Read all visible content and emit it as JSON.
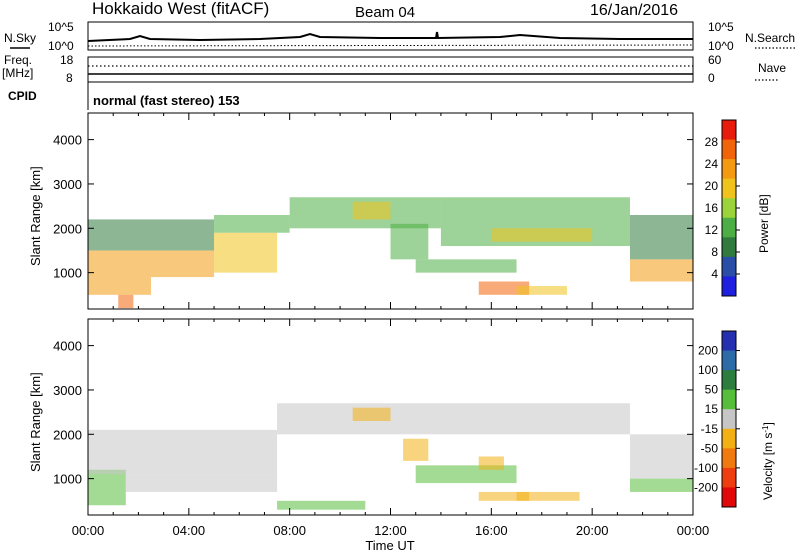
{
  "header": {
    "station": "Hokkaido West (fitACF)",
    "beam": "Beam 04",
    "date": "16/Jan/2016"
  },
  "top_panels": {
    "nsky_label": "N.Sky",
    "nsky_ticks": [
      "10^5",
      "10^0"
    ],
    "nsearch_label": "N.Search",
    "nsearch_ticks": [
      "10^5",
      "10^0"
    ],
    "freq_label": "Freq.",
    "freq_unit": "[MHz]",
    "freq_ticks": [
      "18",
      "8"
    ],
    "nave_label": "Nave",
    "nave_ticks": [
      "60",
      "0"
    ],
    "cpid_label": "CPID",
    "cpid_text": "normal (fast stereo) 153"
  },
  "colors": {
    "power": [
      "#1f1fe0",
      "#2a4ea8",
      "#2f7a3c",
      "#4cae44",
      "#9ad43a",
      "#f0c21c",
      "#f39a10",
      "#f2640a",
      "#e81c0c"
    ],
    "velocity": [
      "#2430b0",
      "#2c6aa8",
      "#2d7d3e",
      "#57be3c",
      "#c6c6c6",
      "#f2b014",
      "#f07a10",
      "#ee3e10",
      "#e00808"
    ],
    "ground_scatter": "#c6c6c6"
  },
  "chart_data": [
    {
      "type": "heatmap",
      "title": "",
      "xlabel": "",
      "ylabel": "Slant Range [km]",
      "xlim": [
        "00:00",
        "24:00"
      ],
      "ylim": [
        180,
        4600
      ],
      "x_ticks": [
        "00:00",
        "04:00",
        "08:00",
        "12:00",
        "16:00",
        "20:00",
        "00:00"
      ],
      "y_ticks": [
        "1000",
        "2000",
        "3000",
        "4000"
      ],
      "colorbar": {
        "label": "Power [dB]",
        "range": [
          0,
          32
        ],
        "ticks": [
          "4",
          "8",
          "12",
          "16",
          "20",
          "24",
          "28"
        ]
      },
      "series": [
        {
          "values": [
            {
              "t0": 0.0,
              "t1": 2.5,
              "r0": 500,
              "r1": 1500,
              "level": 24
            },
            {
              "t0": 0.0,
              "t1": 2.5,
              "r0": 1500,
              "r1": 2200,
              "level": 8
            },
            {
              "t0": 1.2,
              "t1": 1.8,
              "r0": 200,
              "r1": 500,
              "level": 28
            },
            {
              "t0": 2.5,
              "t1": 5.0,
              "r0": 900,
              "r1": 1500,
              "level": 22
            },
            {
              "t0": 2.5,
              "t1": 5.0,
              "r0": 1500,
              "r1": 2200,
              "level": 8
            },
            {
              "t0": 5.0,
              "t1": 7.5,
              "r0": 1000,
              "r1": 1900,
              "level": 18
            },
            {
              "t0": 5.0,
              "t1": 8.0,
              "r0": 1900,
              "r1": 2300,
              "level": 12
            },
            {
              "t0": 8.0,
              "t1": 14.0,
              "r0": 2000,
              "r1": 2700,
              "level": 14
            },
            {
              "t0": 10.5,
              "t1": 12.0,
              "r0": 2200,
              "r1": 2600,
              "level": 20
            },
            {
              "t0": 12.0,
              "t1": 13.5,
              "r0": 1300,
              "r1": 2100,
              "level": 12
            },
            {
              "t0": 14.0,
              "t1": 21.5,
              "r0": 1600,
              "r1": 2700,
              "level": 14
            },
            {
              "t0": 16.0,
              "t1": 20.0,
              "r0": 1700,
              "r1": 2000,
              "level": 20
            },
            {
              "t0": 15.5,
              "t1": 17.5,
              "r0": 500,
              "r1": 800,
              "level": 26
            },
            {
              "t0": 13.0,
              "t1": 17.0,
              "r0": 1000,
              "r1": 1300,
              "level": 14
            },
            {
              "t0": 17.0,
              "t1": 19.0,
              "r0": 500,
              "r1": 700,
              "level": 20
            },
            {
              "t0": 21.5,
              "t1": 24.0,
              "r0": 800,
              "r1": 1300,
              "level": 24
            },
            {
              "t0": 21.5,
              "t1": 24.0,
              "r0": 1300,
              "r1": 2300,
              "level": 10
            }
          ]
        }
      ]
    },
    {
      "type": "heatmap",
      "title": "",
      "xlabel": "Time UT",
      "ylabel": "Slant Range [km]",
      "xlim": [
        "00:00",
        "24:00"
      ],
      "ylim": [
        180,
        4600
      ],
      "x_ticks": [
        "00:00",
        "04:00",
        "08:00",
        "12:00",
        "16:00",
        "20:00",
        "00:00"
      ],
      "y_ticks": [
        "1000",
        "2000",
        "3000",
        "4000"
      ],
      "colorbar": {
        "label": "Velocity [m s",
        "label_sup": "-1",
        "label_end": "]",
        "range": [
          -250,
          250
        ],
        "ticks": [
          "200",
          "100",
          "50",
          "15",
          "-15",
          "-50",
          "-100",
          "-200"
        ]
      },
      "series": [
        {
          "values": [
            {
              "t0": 0.0,
              "t1": 1.5,
              "r0": 400,
              "r1": 1200,
              "level": 60
            },
            {
              "t0": 0.0,
              "t1": 7.5,
              "r0": 1100,
              "r1": 2100,
              "level": 0
            },
            {
              "t0": 1.5,
              "t1": 7.5,
              "r0": 700,
              "r1": 1100,
              "level": 0
            },
            {
              "t0": 7.5,
              "t1": 21.5,
              "r0": 2000,
              "r1": 2700,
              "level": 0
            },
            {
              "t0": 10.5,
              "t1": 12.0,
              "r0": 2300,
              "r1": 2600,
              "level": -40
            },
            {
              "t0": 12.5,
              "t1": 13.5,
              "r0": 1400,
              "r1": 1900,
              "level": -60
            },
            {
              "t0": 13.0,
              "t1": 17.0,
              "r0": 900,
              "r1": 1300,
              "level": 60
            },
            {
              "t0": 15.5,
              "t1": 16.5,
              "r0": 1200,
              "r1": 1500,
              "level": -80
            },
            {
              "t0": 15.5,
              "t1": 17.5,
              "r0": 500,
              "r1": 700,
              "level": -80
            },
            {
              "t0": 17.0,
              "t1": 19.5,
              "r0": 500,
              "r1": 700,
              "level": -40
            },
            {
              "t0": 7.5,
              "t1": 11.0,
              "r0": 300,
              "r1": 500,
              "level": 60
            },
            {
              "t0": 21.5,
              "t1": 24.0,
              "r0": 1000,
              "r1": 2000,
              "level": 0
            },
            {
              "t0": 21.5,
              "t1": 24.0,
              "r0": 700,
              "r1": 1000,
              "level": 40
            }
          ]
        }
      ]
    }
  ]
}
